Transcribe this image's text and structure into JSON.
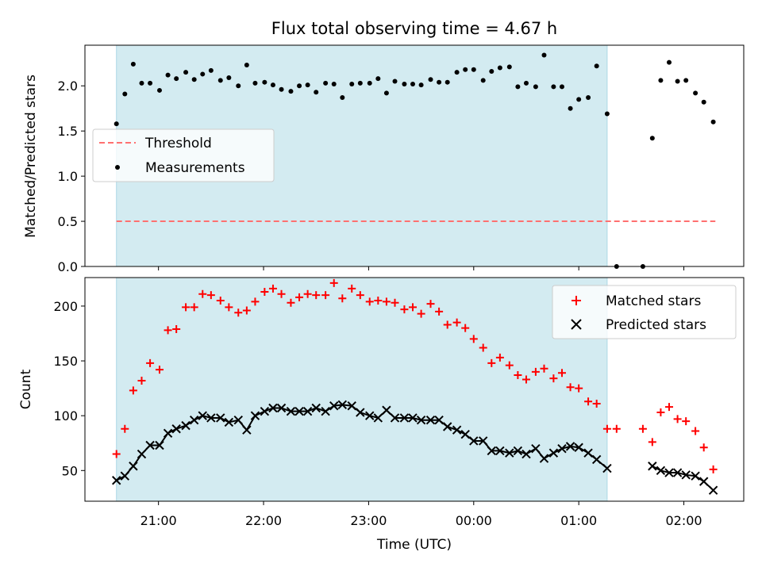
{
  "chart_data": {
    "type": "scatter",
    "title": "Flux total observing time = 4.67 h",
    "xlabel": "Time (UTC)",
    "x_tick_labels": [
      "21:00",
      "22:00",
      "23:00",
      "00:00",
      "01:00",
      "02:00"
    ],
    "x_tick_hours": [
      21.0,
      22.0,
      23.0,
      24.0,
      25.0,
      26.0
    ],
    "xlim_hours": [
      20.3,
      26.57
    ],
    "observing_window_hours": [
      20.6,
      25.27
    ],
    "observing_window_color": "#d3ebf1",
    "panels": [
      {
        "ylabel": "Matched/Predicted stars",
        "ylim": [
          0,
          2.45
        ],
        "y_ticks": [
          0.0,
          0.5,
          1.0,
          1.5,
          2.0
        ],
        "y_tick_labels": [
          "0.0",
          "0.5",
          "1.0",
          "1.5",
          "2.0"
        ],
        "legend": {
          "placement": "center-left",
          "threshold_label": "Threshold",
          "measurements_label": "Measurements"
        },
        "threshold": {
          "name": "Threshold",
          "value": 0.5,
          "x_range_hours": [
            20.6,
            26.3
          ],
          "color": "#ff7070"
        },
        "series": [
          {
            "name": "Measurements",
            "marker": "dot",
            "color": "#000000",
            "x_hours": [
              20.6,
              20.68,
              20.76,
              20.84,
              20.92,
              21.01,
              21.09,
              21.17,
              21.26,
              21.34,
              21.42,
              21.5,
              21.59,
              21.67,
              21.76,
              21.84,
              21.92,
              22.01,
              22.09,
              22.17,
              22.26,
              22.34,
              22.42,
              22.5,
              22.59,
              22.67,
              22.75,
              22.84,
              22.92,
              23.01,
              23.09,
              23.17,
              23.25,
              23.34,
              23.42,
              23.5,
              23.59,
              23.67,
              23.75,
              23.84,
              23.92,
              24.0,
              24.09,
              24.17,
              24.25,
              24.34,
              24.42,
              24.5,
              24.59,
              24.67,
              24.76,
              24.84,
              24.92,
              25.0,
              25.09,
              25.17,
              25.27,
              25.36,
              25.61,
              25.7,
              25.78,
              25.86,
              25.94,
              26.02,
              26.11,
              26.19,
              26.28
            ],
            "y": [
              1.58,
              1.91,
              2.24,
              2.03,
              2.03,
              1.95,
              2.12,
              2.08,
              2.15,
              2.07,
              2.13,
              2.17,
              2.06,
              2.09,
              2.0,
              2.23,
              2.03,
              2.04,
              2.01,
              1.96,
              1.94,
              2.0,
              2.01,
              1.93,
              2.03,
              2.02,
              1.87,
              2.02,
              2.03,
              2.03,
              2.08,
              1.92,
              2.05,
              2.02,
              2.02,
              2.01,
              2.07,
              2.04,
              2.04,
              2.15,
              2.18,
              2.18,
              2.06,
              2.16,
              2.2,
              2.21,
              1.99,
              2.03,
              1.99,
              2.34,
              1.99,
              1.99,
              1.75,
              1.85,
              1.87,
              2.22,
              1.69,
              0.0,
              0.0,
              1.42,
              2.06,
              2.26,
              2.05,
              2.06,
              1.92,
              1.82,
              1.6
            ]
          }
        ]
      },
      {
        "ylabel": "Count",
        "ylim": [
          22,
          226
        ],
        "y_ticks": [
          50,
          100,
          150,
          200
        ],
        "y_tick_labels": [
          "50",
          "100",
          "150",
          "200"
        ],
        "legend": {
          "placement": "upper-right"
        },
        "series": [
          {
            "name": "Matched stars",
            "marker": "plus",
            "color": "#ff0000",
            "x_hours": [
              20.6,
              20.68,
              20.76,
              20.84,
              20.92,
              21.01,
              21.09,
              21.17,
              21.26,
              21.34,
              21.42,
              21.5,
              21.59,
              21.67,
              21.76,
              21.84,
              21.92,
              22.01,
              22.09,
              22.17,
              22.26,
              22.34,
              22.42,
              22.5,
              22.59,
              22.67,
              22.75,
              22.84,
              22.92,
              23.01,
              23.09,
              23.17,
              23.25,
              23.34,
              23.42,
              23.5,
              23.59,
              23.67,
              23.75,
              23.84,
              23.92,
              24.0,
              24.09,
              24.17,
              24.25,
              24.34,
              24.42,
              24.5,
              24.59,
              24.67,
              24.76,
              24.84,
              24.92,
              25.0,
              25.09,
              25.17,
              25.27,
              25.36,
              25.61,
              25.7,
              25.78,
              25.86,
              25.94,
              26.02,
              26.11,
              26.19,
              26.28
            ],
            "y": [
              65,
              88,
              123,
              132,
              148,
              142,
              178,
              179,
              199,
              199,
              211,
              210,
              205,
              199,
              194,
              196,
              204,
              213,
              216,
              211,
              203,
              208,
              211,
              210,
              210,
              221,
              207,
              216,
              210,
              204,
              205,
              204,
              203,
              197,
              199,
              193,
              202,
              195,
              183,
              185,
              180,
              170,
              162,
              148,
              153,
              146,
              137,
              133,
              140,
              143,
              134,
              139,
              126,
              125,
              113,
              111,
              88,
              88,
              88,
              76,
              103,
              108,
              97,
              95,
              86,
              71,
              51
            ]
          },
          {
            "name": "Predicted stars",
            "marker": "x",
            "color": "#000000",
            "x_hours": [
              20.6,
              20.68,
              20.76,
              20.84,
              20.92,
              21.01,
              21.09,
              21.17,
              21.26,
              21.34,
              21.42,
              21.5,
              21.59,
              21.67,
              21.76,
              21.84,
              21.92,
              22.01,
              22.09,
              22.17,
              22.26,
              22.34,
              22.42,
              22.5,
              22.59,
              22.67,
              22.75,
              22.84,
              22.92,
              23.01,
              23.09,
              23.17,
              23.25,
              23.34,
              23.42,
              23.5,
              23.59,
              23.67,
              23.75,
              23.84,
              23.92,
              24.0,
              24.09,
              24.17,
              24.25,
              24.34,
              24.42,
              24.5,
              24.59,
              24.67,
              24.76,
              24.84,
              24.92,
              25.0,
              25.09,
              25.17,
              25.27,
              25.7,
              25.78,
              25.86,
              25.94,
              26.02,
              26.11,
              26.19,
              26.28
            ],
            "y": [
              41,
              45,
              54,
              65,
              73,
              73,
              84,
              88,
              91,
              96,
              100,
              98,
              98,
              94,
              96,
              87,
              100,
              104,
              107,
              107,
              104,
              104,
              104,
              107,
              104,
              109,
              110,
              109,
              103,
              100,
              98,
              105,
              98,
              98,
              98,
              96,
              96,
              96,
              90,
              87,
              83,
              77,
              77,
              68,
              68,
              66,
              68,
              65,
              70,
              61,
              66,
              70,
              72,
              71,
              66,
              60,
              52,
              54,
              50,
              48,
              48,
              46,
              45,
              40,
              32
            ]
          }
        ]
      }
    ]
  }
}
